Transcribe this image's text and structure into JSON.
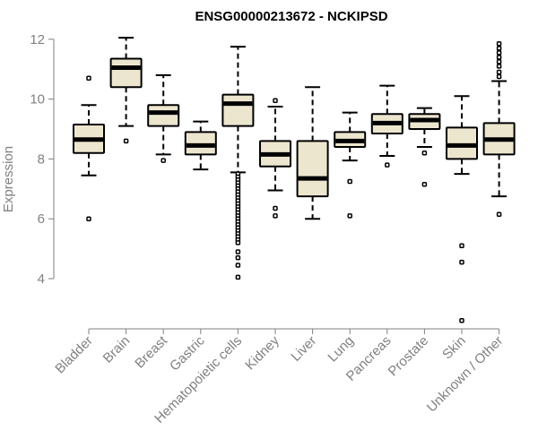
{
  "chart_data": {
    "type": "boxplot",
    "title": "ENSG00000213672 - NCKIPSD",
    "xlabel": "",
    "ylabel": "Expression",
    "ylim": [
      2.5,
      12.2
    ],
    "yticks": [
      4,
      6,
      8,
      10,
      12
    ],
    "grid": false,
    "colors": {
      "box_fill": "#ede6cf",
      "stroke": "#000000",
      "axis": "#808080"
    },
    "categories": [
      "Bladder",
      "Brain",
      "Breast",
      "Gastric",
      "Hematopoietic cells",
      "Kidney",
      "Liver",
      "Lung",
      "Pancreas",
      "Prostate",
      "Skin",
      "Unknown / Other"
    ],
    "boxes": [
      {
        "name": "Bladder",
        "whisker_low": 7.45,
        "q1": 8.2,
        "median": 8.65,
        "q3": 9.15,
        "whisker_high": 9.8,
        "outliers": [
          6.0,
          10.7
        ]
      },
      {
        "name": "Brain",
        "whisker_low": 9.1,
        "q1": 10.4,
        "median": 11.05,
        "q3": 11.35,
        "whisker_high": 12.05,
        "outliers": [
          8.6
        ]
      },
      {
        "name": "Breast",
        "whisker_low": 8.15,
        "q1": 9.1,
        "median": 9.55,
        "q3": 9.8,
        "whisker_high": 10.8,
        "outliers": [
          7.95
        ]
      },
      {
        "name": "Gastric",
        "whisker_low": 7.65,
        "q1": 8.15,
        "median": 8.45,
        "q3": 8.9,
        "whisker_high": 9.25,
        "outliers": []
      },
      {
        "name": "Hematopoietic cells",
        "whisker_low": 7.55,
        "q1": 9.1,
        "median": 9.85,
        "q3": 10.15,
        "whisker_high": 11.75,
        "outliers": [
          7.5,
          7.4,
          7.3,
          7.2,
          7.1,
          7.0,
          6.9,
          6.8,
          6.7,
          6.6,
          6.5,
          6.4,
          6.3,
          6.2,
          6.1,
          6.0,
          5.9,
          5.8,
          5.7,
          5.6,
          5.5,
          5.4,
          5.3,
          5.2,
          4.9,
          4.7,
          4.45,
          4.05
        ]
      },
      {
        "name": "Kidney",
        "whisker_low": 6.95,
        "q1": 7.75,
        "median": 8.15,
        "q3": 8.6,
        "whisker_high": 9.75,
        "outliers": [
          9.95,
          6.35,
          6.1
        ]
      },
      {
        "name": "Liver",
        "whisker_low": 6.0,
        "q1": 6.75,
        "median": 7.35,
        "q3": 8.6,
        "whisker_high": 10.4,
        "outliers": []
      },
      {
        "name": "Lung",
        "whisker_low": 7.95,
        "q1": 8.4,
        "median": 8.6,
        "q3": 8.9,
        "whisker_high": 9.55,
        "outliers": [
          7.25,
          6.1
        ]
      },
      {
        "name": "Pancreas",
        "whisker_low": 8.1,
        "q1": 8.85,
        "median": 9.2,
        "q3": 9.5,
        "whisker_high": 10.45,
        "outliers": [
          7.8
        ]
      },
      {
        "name": "Prostate",
        "whisker_low": 8.4,
        "q1": 9.0,
        "median": 9.3,
        "q3": 9.5,
        "whisker_high": 9.7,
        "outliers": [
          8.2,
          7.15
        ]
      },
      {
        "name": "Skin",
        "whisker_low": 7.5,
        "q1": 8.0,
        "median": 8.45,
        "q3": 9.05,
        "whisker_high": 10.1,
        "outliers": [
          5.1,
          4.55,
          2.6
        ]
      },
      {
        "name": "Unknown / Other",
        "whisker_low": 6.75,
        "q1": 8.15,
        "median": 8.65,
        "q3": 9.2,
        "whisker_high": 10.6,
        "outliers": [
          11.85,
          11.7,
          11.55,
          11.4,
          11.25,
          11.1,
          10.9,
          10.75,
          6.15
        ]
      }
    ]
  }
}
